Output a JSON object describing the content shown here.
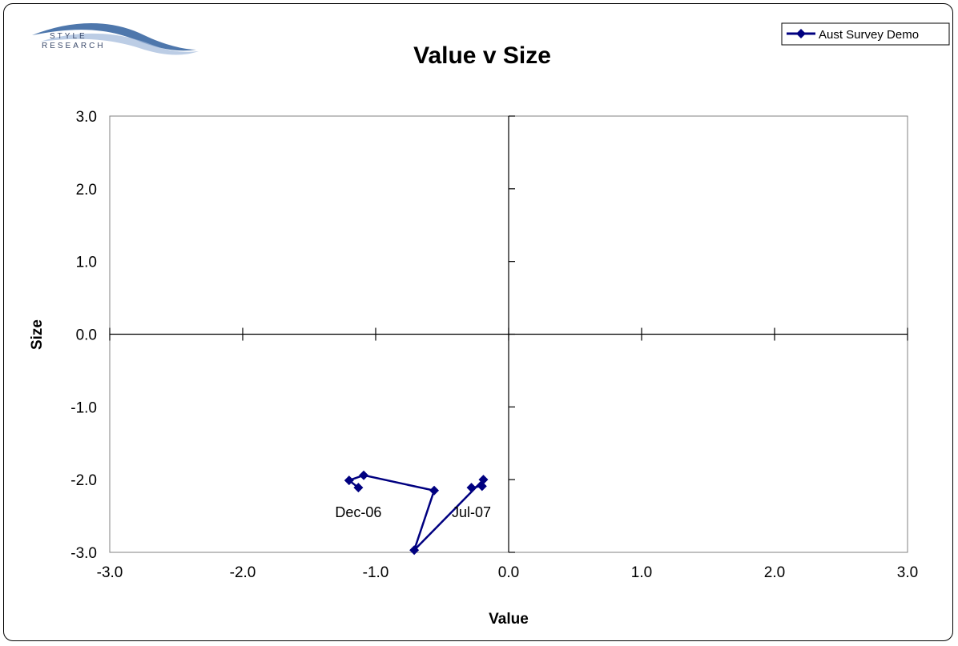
{
  "logo": {
    "line1": "STYLE",
    "line2": "RESEARCH",
    "icon": "swoosh-logo"
  },
  "colors": {
    "series": "#000080",
    "axis": "#000000",
    "plot_border": "#808080"
  },
  "chart_data": {
    "type": "scatter",
    "title": "Value v Size",
    "xlabel": "Value",
    "ylabel": "Size",
    "xlim": [
      -3.0,
      3.0
    ],
    "ylim": [
      -3.0,
      3.0
    ],
    "x_ticks": [
      "-3.0",
      "-2.0",
      "-1.0",
      "0.0",
      "1.0",
      "2.0",
      "3.0"
    ],
    "y_ticks": [
      "3.0",
      "2.0",
      "1.0",
      "0.0",
      "-1.0",
      "-2.0",
      "-3.0"
    ],
    "grid": false,
    "legend_position": "top-right",
    "series": [
      {
        "name": "Aust Survey Demo",
        "marker": "diamond",
        "line": true,
        "x": [
          -1.13,
          -1.2,
          -1.09,
          -0.56,
          -0.71,
          -0.19,
          -0.2,
          -0.28
        ],
        "y": [
          -2.11,
          -2.01,
          -1.94,
          -2.15,
          -2.97,
          -2.0,
          -2.09,
          -2.11
        ]
      }
    ],
    "annotations": [
      {
        "text": "Dec-06",
        "x": -1.13,
        "y": -2.11
      },
      {
        "text": "Jul-07",
        "x": -0.28,
        "y": -2.11
      }
    ]
  }
}
